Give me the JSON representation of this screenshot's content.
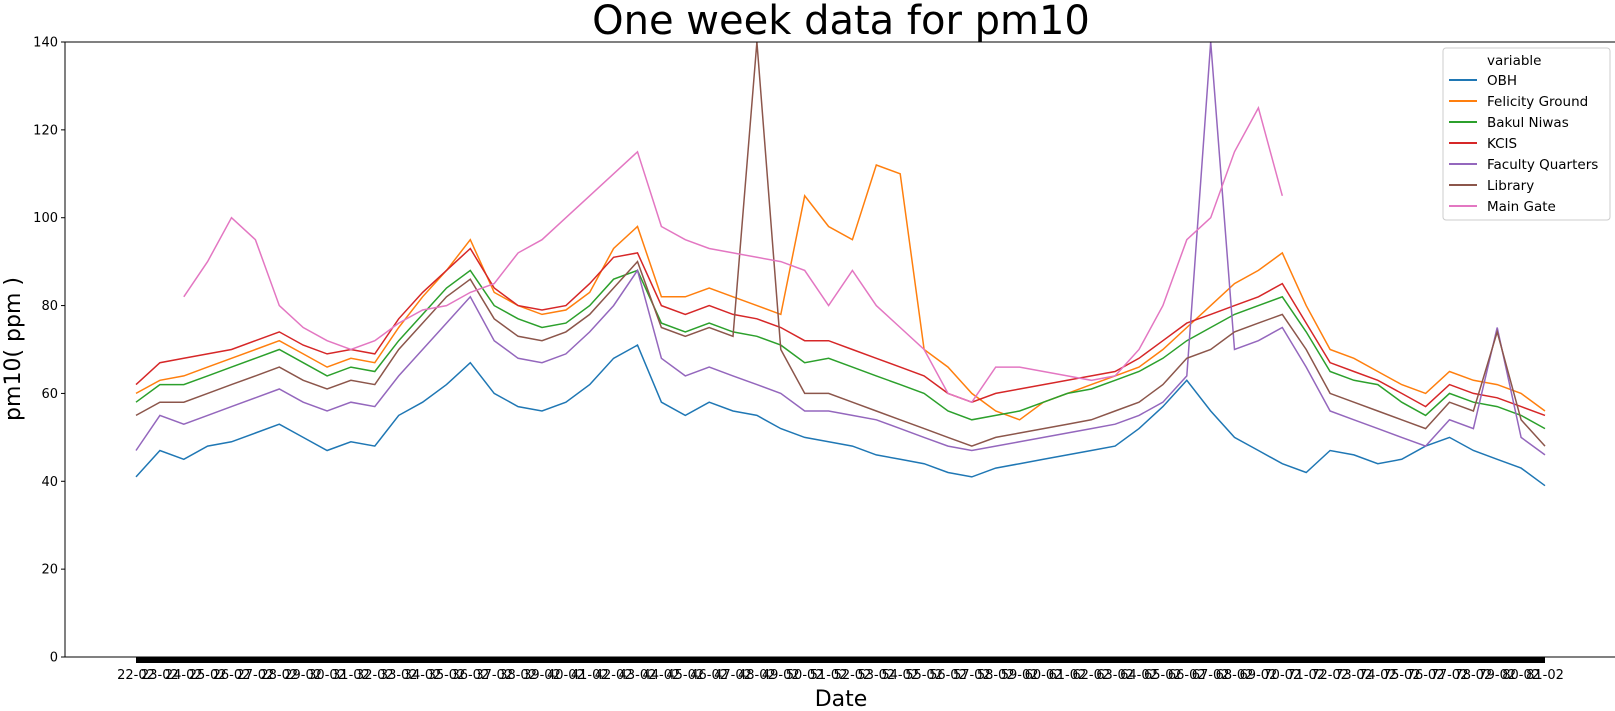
{
  "chart_data": {
    "type": "line",
    "title": "One week data for pm10",
    "xlabel": "Date",
    "ylabel": "pm10( ppm )",
    "ylim": [
      0,
      140
    ],
    "yticks": [
      0,
      20,
      40,
      60,
      80,
      100,
      120,
      140
    ],
    "x_tick_labels": [
      "22-02",
      "23-02",
      "24-02",
      "25-02",
      "26-02",
      "27-02",
      "28-02",
      "29-02",
      "30-02",
      "31-02",
      "32-02",
      "33-02",
      "34-02",
      "35-02",
      "36-02",
      "37-02",
      "38-02",
      "39-02",
      "40-02",
      "41-02",
      "42-02",
      "43-02",
      "44-02",
      "45-02",
      "46-02",
      "47-02",
      "48-02",
      "49-02",
      "50-02",
      "51-02",
      "52-02",
      "53-02",
      "54-02",
      "55-02",
      "56-02",
      "57-02",
      "58-02",
      "59-02",
      "60-02",
      "61-02",
      "62-02",
      "63-02",
      "64-02",
      "65-02",
      "66-02",
      "67-02",
      "68-02",
      "69-02",
      "70-02",
      "71-02",
      "72-02",
      "73-02",
      "74-02",
      "75-02",
      "76-02",
      "77-02",
      "78-02",
      "79-02",
      "80-02",
      "81-02"
    ],
    "grid": false,
    "legend": {
      "title": "variable",
      "placement": "top-right"
    },
    "series": [
      {
        "name": "OBH",
        "color": "#1f77b4",
        "values": [
          41,
          47,
          45,
          48,
          49,
          51,
          53,
          50,
          47,
          49,
          48,
          55,
          58,
          62,
          67,
          60,
          57,
          56,
          58,
          62,
          68,
          71,
          58,
          55,
          58,
          56,
          55,
          52,
          50,
          49,
          48,
          46,
          45,
          44,
          42,
          41,
          43,
          44,
          45,
          46,
          47,
          48,
          52,
          57,
          63,
          56,
          50,
          47,
          44,
          42,
          47,
          46,
          44,
          45,
          48,
          50,
          47,
          45,
          43,
          39
        ]
      },
      {
        "name": "Felicity Ground",
        "color": "#ff7f0e",
        "values": [
          60,
          63,
          64,
          66,
          68,
          70,
          72,
          69,
          66,
          68,
          67,
          75,
          82,
          88,
          95,
          83,
          80,
          78,
          79,
          83,
          93,
          98,
          82,
          82,
          84,
          82,
          80,
          78,
          105,
          98,
          95,
          112,
          110,
          70,
          66,
          60,
          56,
          54,
          58,
          60,
          62,
          64,
          66,
          70,
          75,
          80,
          85,
          88,
          92,
          80,
          70,
          68,
          65,
          62,
          60,
          65,
          63,
          62,
          60,
          56
        ]
      },
      {
        "name": "Bakul Niwas",
        "color": "#2ca02c",
        "values": [
          58,
          62,
          62,
          64,
          66,
          68,
          70,
          67,
          64,
          66,
          65,
          72,
          78,
          84,
          88,
          80,
          77,
          75,
          76,
          80,
          86,
          88,
          76,
          74,
          76,
          74,
          73,
          71,
          67,
          68,
          66,
          64,
          62,
          60,
          56,
          54,
          55,
          56,
          58,
          60,
          61,
          63,
          65,
          68,
          72,
          75,
          78,
          80,
          82,
          74,
          65,
          63,
          62,
          58,
          55,
          60,
          58,
          57,
          55,
          52
        ]
      },
      {
        "name": "KCIS",
        "color": "#d62728",
        "values": [
          62,
          67,
          68,
          69,
          70,
          72,
          74,
          71,
          69,
          70,
          69,
          77,
          83,
          88,
          93,
          84,
          80,
          79,
          80,
          85,
          91,
          92,
          80,
          78,
          80,
          78,
          77,
          75,
          72,
          72,
          70,
          68,
          66,
          64,
          60,
          58,
          60,
          61,
          62,
          63,
          64,
          65,
          68,
          72,
          76,
          78,
          80,
          82,
          85,
          76,
          67,
          65,
          63,
          60,
          57,
          62,
          60,
          59,
          57,
          55
        ]
      },
      {
        "name": "Faculty Quarters",
        "color": "#9467bd",
        "values": [
          47,
          55,
          53,
          55,
          57,
          59,
          61,
          58,
          56,
          58,
          57,
          64,
          70,
          76,
          82,
          72,
          68,
          67,
          69,
          74,
          80,
          88,
          68,
          64,
          66,
          64,
          62,
          60,
          56,
          56,
          55,
          54,
          52,
          50,
          48,
          47,
          48,
          49,
          50,
          51,
          52,
          53,
          55,
          58,
          64,
          140,
          70,
          72,
          75,
          66,
          56,
          54,
          52,
          50,
          48,
          54,
          52,
          75,
          50,
          46
        ]
      },
      {
        "name": "Library",
        "color": "#8c564b",
        "values": [
          55,
          58,
          58,
          60,
          62,
          64,
          66,
          63,
          61,
          63,
          62,
          70,
          76,
          82,
          86,
          77,
          73,
          72,
          74,
          78,
          84,
          90,
          75,
          73,
          75,
          73,
          140,
          70,
          60,
          60,
          58,
          56,
          54,
          52,
          50,
          48,
          50,
          51,
          52,
          53,
          54,
          56,
          58,
          62,
          68,
          70,
          74,
          76,
          78,
          70,
          60,
          58,
          56,
          54,
          52,
          58,
          56,
          74,
          54,
          48
        ]
      },
      {
        "name": "Main Gate",
        "color": "#e377c2",
        "values": [
          null,
          null,
          82,
          90,
          100,
          95,
          80,
          75,
          72,
          70,
          72,
          76,
          79,
          80,
          83,
          85,
          92,
          95,
          100,
          105,
          110,
          115,
          98,
          95,
          93,
          92,
          91,
          90,
          88,
          80,
          88,
          80,
          75,
          70,
          60,
          58,
          66,
          66,
          65,
          64,
          63,
          64,
          70,
          80,
          95,
          100,
          115,
          125,
          105,
          null,
          null,
          null,
          null,
          null,
          null,
          null,
          null,
          null,
          null,
          null
        ]
      }
    ]
  }
}
